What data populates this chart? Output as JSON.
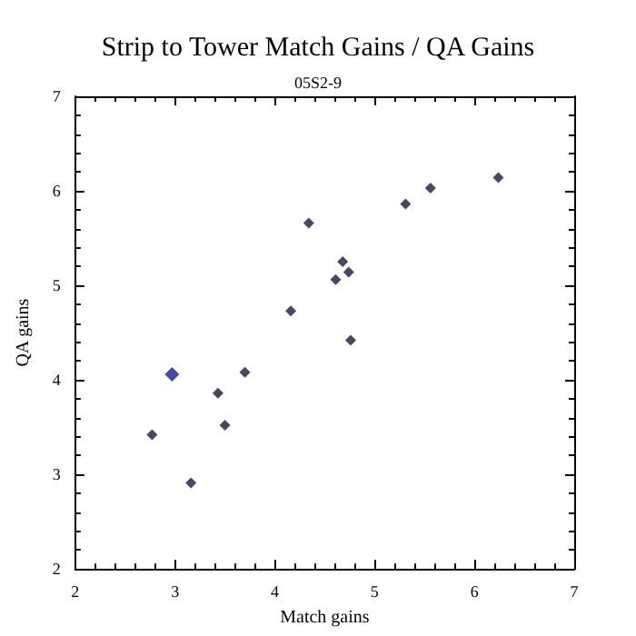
{
  "chart_data": {
    "type": "scatter",
    "title": "Strip to Tower Match Gains / QA Gains",
    "subtitle": "05S2-9",
    "xlabel": "Match gains",
    "ylabel": "QA gains",
    "xlim": [
      2,
      7
    ],
    "xticks": [
      2,
      3,
      4,
      5,
      6,
      7
    ],
    "ylim": [
      2,
      7
    ],
    "yticks": [
      2,
      3,
      4,
      5,
      6,
      7
    ],
    "grid": false,
    "marker": "diamond",
    "series": [
      {
        "color": "#1a1a3c",
        "x": [
          2.77,
          3.16,
          3.43,
          3.5,
          3.7,
          4.16,
          4.34,
          4.61,
          4.68,
          4.74,
          4.76,
          5.31,
          5.56,
          6.24
        ],
        "values": [
          3.42,
          2.91,
          3.86,
          3.52,
          4.08,
          4.73,
          5.66,
          5.06,
          5.25,
          5.14,
          4.42,
          5.86,
          6.03,
          6.14
        ]
      },
      {
        "color": "#1a1a8c",
        "x": [
          2.97
        ],
        "values": [
          4.06
        ]
      }
    ]
  }
}
